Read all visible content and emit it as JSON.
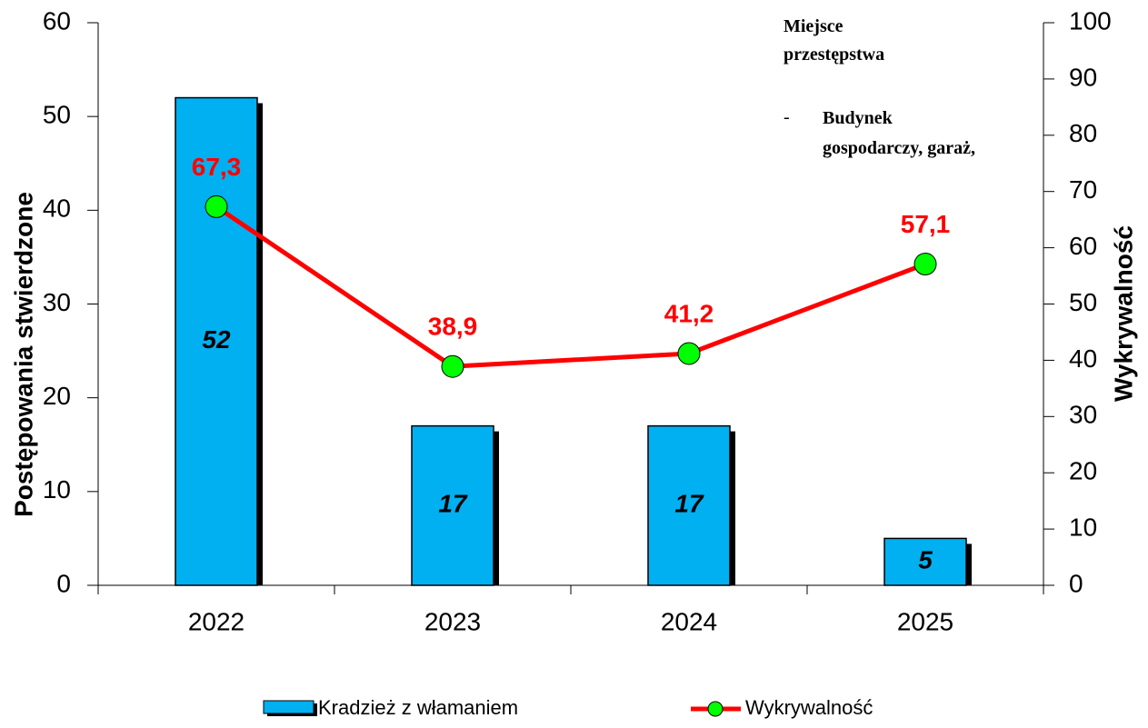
{
  "chart_data": {
    "type": "bar_line",
    "categories": [
      "2022",
      "2023",
      "2024",
      "2025"
    ],
    "series": [
      {
        "name": "Kradzież z włamaniem",
        "type": "bar",
        "color": "#00b0f0",
        "values": [
          52,
          17,
          17,
          5
        ]
      },
      {
        "name": "Wykrywalność",
        "type": "line",
        "axis": "y2",
        "color": "#ff0000",
        "marker_color": "#00ff00",
        "values": [
          67.3,
          38.9,
          41.2,
          57.1
        ],
        "value_labels": [
          "67,3",
          "38,9",
          "41,2",
          "57,1"
        ]
      }
    ],
    "ylabel": "Postępowania stwierdzone",
    "y2label": "Wykrywalność",
    "ylim": [
      0,
      60
    ],
    "yticks": [
      0,
      10,
      20,
      30,
      40,
      50,
      60
    ],
    "y2lim": [
      0,
      100
    ],
    "y2ticks": [
      0,
      10,
      20,
      30,
      40,
      50,
      60,
      70,
      80,
      90,
      100
    ],
    "annotations": [
      "Miejsce przestępstwa",
      "-",
      "Budynek gospodarczy, garaż,"
    ],
    "legend": "bottom"
  }
}
